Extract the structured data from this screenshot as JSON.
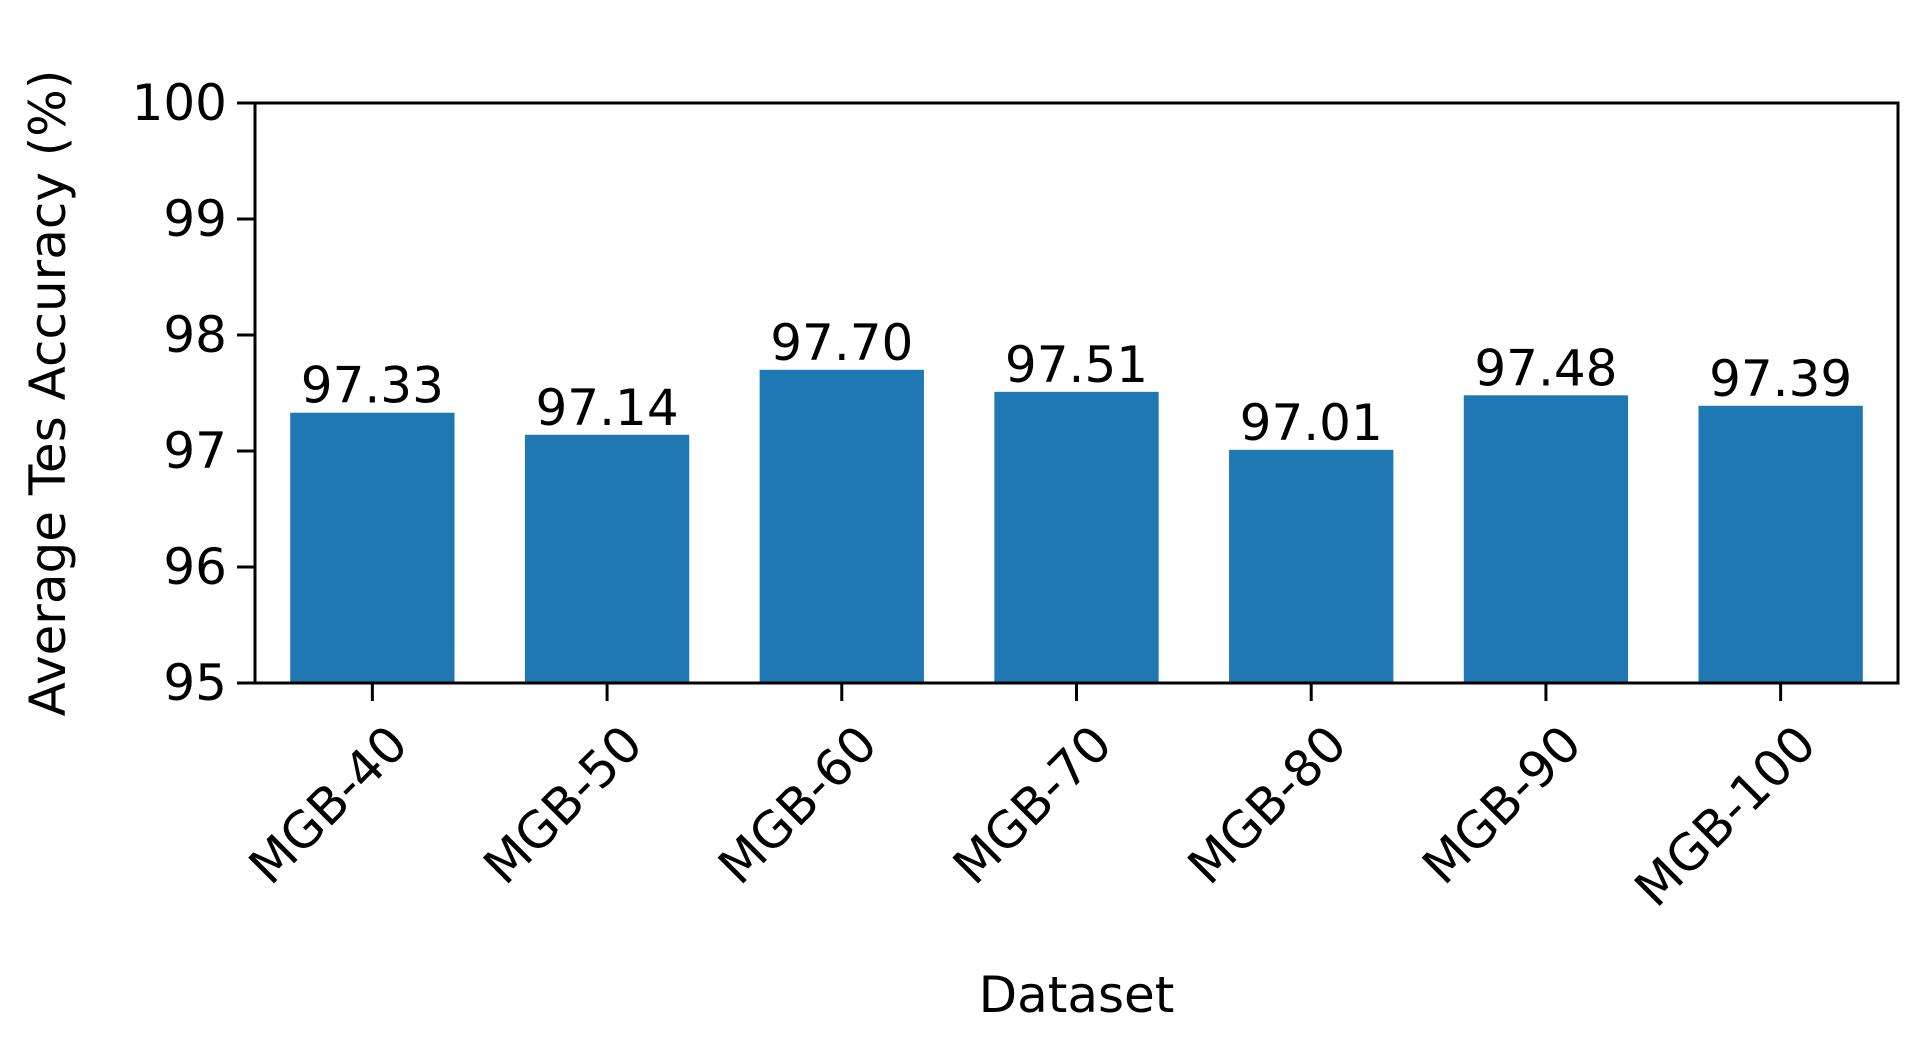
{
  "chart_data": {
    "type": "bar",
    "title": "",
    "xlabel": "Dataset",
    "ylabel": "Average Tes Accuracy (%)",
    "categories": [
      "MGB-40",
      "MGB-50",
      "MGB-60",
      "MGB-70",
      "MGB-80",
      "MGB-90",
      "MGB-100"
    ],
    "values": [
      97.33,
      97.14,
      97.7,
      97.51,
      97.01,
      97.48,
      97.39
    ],
    "value_labels": [
      "97.33",
      "97.14",
      "97.70",
      "97.51",
      "97.01",
      "97.48",
      "97.39"
    ],
    "ylim": [
      95,
      100
    ],
    "yticks": [
      95,
      96,
      97,
      98,
      99,
      100
    ],
    "ytick_labels": [
      "95",
      "96",
      "97",
      "98",
      "99",
      "100"
    ],
    "grid": false,
    "legend": "none",
    "bar_color": "#1f77b4"
  }
}
